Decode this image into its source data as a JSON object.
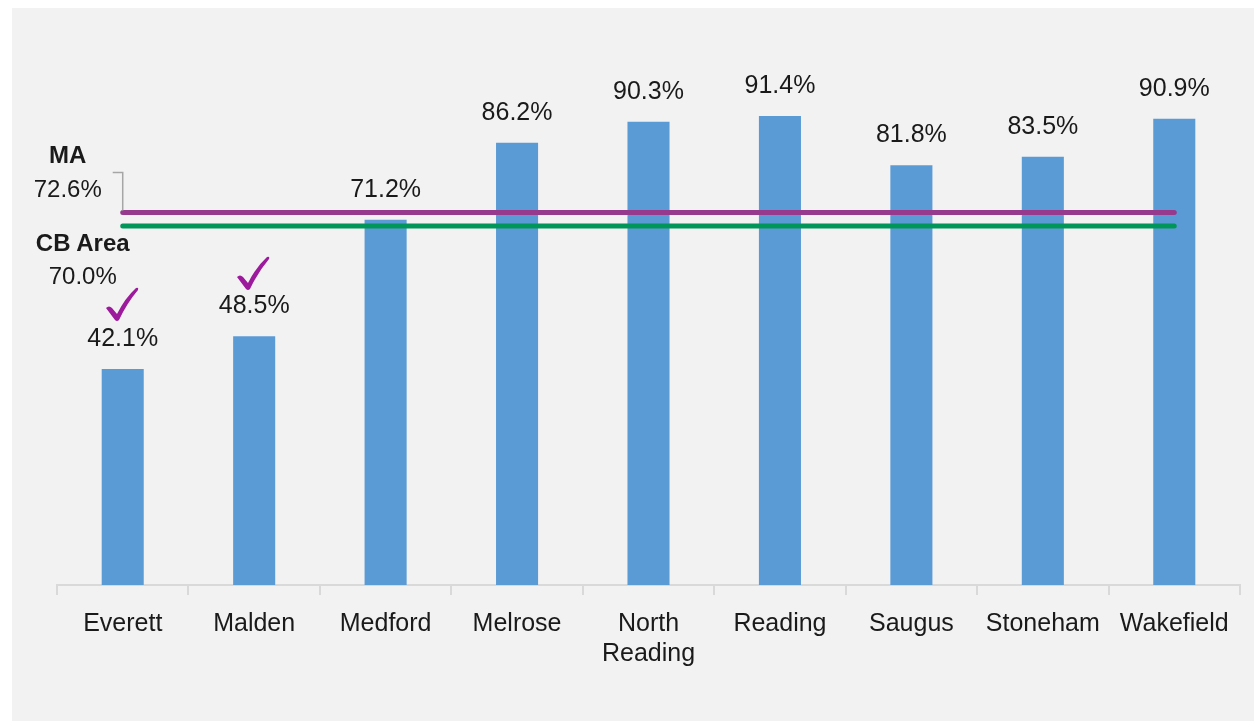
{
  "chart_data": {
    "type": "bar",
    "categories": [
      "Everett",
      "Malden",
      "Medford",
      "Melrose",
      "North Reading",
      "Reading",
      "Saugus",
      "Stoneham",
      "Wakefield"
    ],
    "values": [
      42.1,
      48.5,
      71.2,
      86.2,
      90.3,
      91.4,
      81.8,
      83.5,
      90.9
    ],
    "value_labels": [
      "42.1%",
      "48.5%",
      "71.2%",
      "86.2%",
      "90.3%",
      "91.4%",
      "81.8%",
      "83.5%",
      "90.9%"
    ],
    "color": "#5b9bd5",
    "tick_labels": "x",
    "legend": false,
    "grid": false,
    "ref_lines": [
      {
        "axis": "y",
        "value": 72.6,
        "label": "MA",
        "color": "#953a8d"
      },
      {
        "axis": "y",
        "value": 70.0,
        "label": "CB Area",
        "color": "#00965a"
      }
    ],
    "annotations": [
      "72.6%",
      "70.0%"
    ]
  }
}
